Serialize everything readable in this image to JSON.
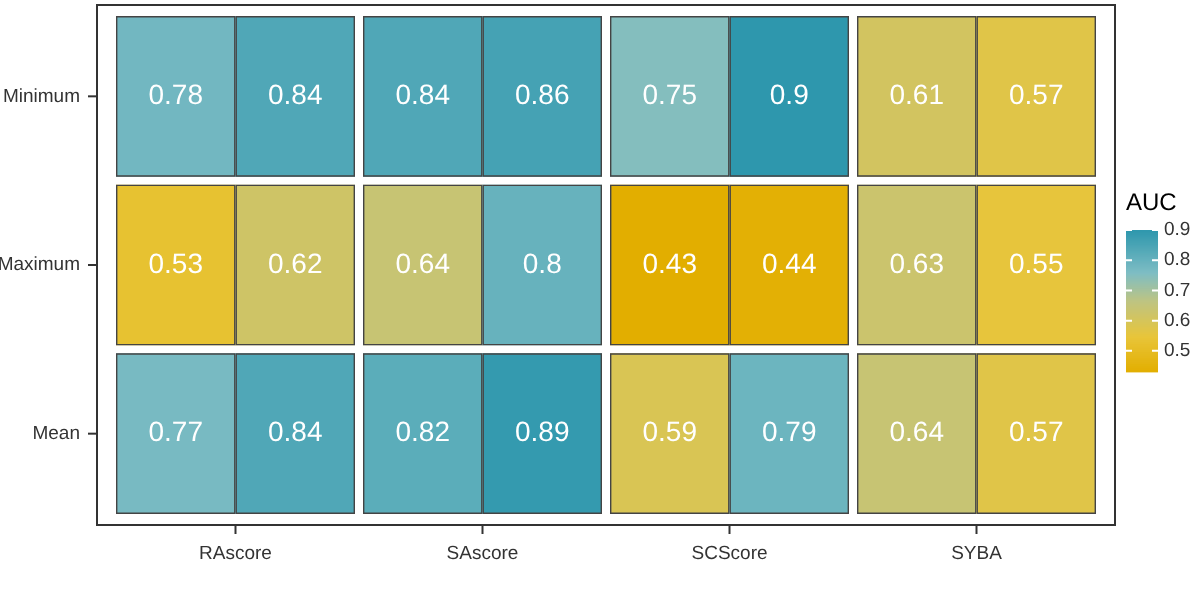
{
  "chart_data": {
    "type": "heatmap",
    "categories": [
      null,
      null,
      null,
      null,
      null,
      null,
      null,
      null
    ],
    "y_categories": [
      "Minimum",
      "Maximum",
      "Mean"
    ],
    "cells": [
      [
        0.78,
        0.84,
        0.84,
        0.86,
        0.75,
        0.9,
        0.61,
        0.57
      ],
      [
        0.53,
        0.62,
        0.64,
        0.8,
        0.43,
        0.44,
        0.63,
        0.55
      ],
      [
        0.77,
        0.84,
        0.82,
        0.89,
        0.59,
        0.79,
        0.64,
        0.57
      ]
    ],
    "data_labels": true,
    "clabel": "AUC",
    "clim": [
      0.43,
      0.9
    ],
    "cticks": [
      0.5,
      0.6,
      0.7,
      0.8,
      0.9
    ],
    "annotations": [
      "RAscore",
      "SAscore",
      "SCScore",
      "SYBA"
    ]
  }
}
